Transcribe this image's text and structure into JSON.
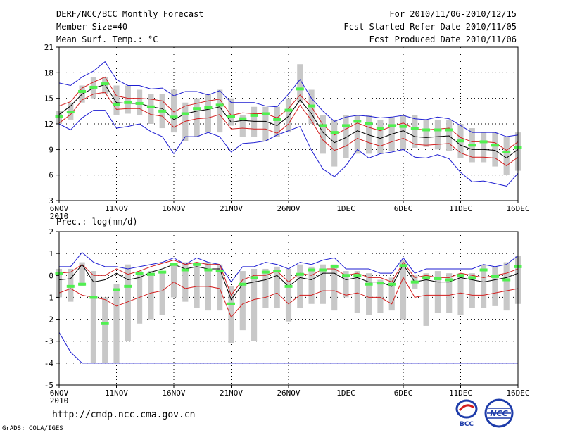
{
  "header": {
    "title": "DERF/NCC/BCC Monthly Forecast",
    "member_size": "Member Size=40",
    "variable": "Mean Surf. Temp.: °C",
    "period": "For 2010/11/06-2010/12/15",
    "refer_date": "Fcst Started Refer Date 2010/11/05",
    "produced_date": "Fcst Produced Date 2010/11/06"
  },
  "footer": {
    "url": "http://cmdp.ncc.cma.gov.cn",
    "credit": "GrADS: COLA/IGES",
    "logo_bcc": "BCC",
    "logo_ncc": "NCC"
  },
  "colors": {
    "bar": "#c8c8c8",
    "mean": "#000000",
    "spread": "#d21e1e",
    "envelope": "#1e1ed2",
    "marker": "#50f050"
  },
  "chart_data": [
    {
      "type": "box-line",
      "title": "Mean Surf. Temp.: °C",
      "xlabel": "",
      "ylabel": "",
      "ylim": [
        3,
        21
      ],
      "yticks": [
        3,
        6,
        9,
        12,
        15,
        18,
        21
      ],
      "xlim": [
        0,
        40
      ],
      "xtick_positions": [
        0,
        5,
        10,
        15,
        20,
        25,
        30,
        35,
        40
      ],
      "xtick_labels": [
        "6NOV",
        "11NOV",
        "16NOV",
        "21NOV",
        "26NOV",
        "1DEC",
        "6DEC",
        "11DEC",
        "16DEC"
      ],
      "year_label": "2010",
      "grid": true,
      "bar_low": [
        12,
        12.5,
        14.5,
        15,
        15.5,
        13,
        13.2,
        13,
        12,
        11.5,
        11,
        10,
        10.5,
        11,
        11,
        11.8,
        10.5,
        10.5,
        10,
        10.5,
        11,
        14.5,
        12,
        8.5,
        7,
        8,
        8.5,
        8.5,
        8.5,
        8.8,
        9,
        9.2,
        9.3,
        9,
        8.8,
        8,
        7.5,
        7.5,
        7,
        6,
        6.5
      ],
      "bar_high": [
        13.5,
        14.5,
        16.5,
        17.5,
        17.5,
        16.5,
        16.5,
        16,
        15.5,
        15.5,
        16,
        14.5,
        15,
        15.5,
        16,
        15,
        13,
        14,
        14,
        14,
        15,
        19,
        16,
        13,
        12.5,
        13,
        13,
        13,
        12.5,
        12.8,
        13,
        13,
        12.5,
        12.5,
        12.5,
        12,
        11.5,
        11,
        11,
        10.5,
        11
      ],
      "marker": [
        12.9,
        13.4,
        15.8,
        16.3,
        16.7,
        14.3,
        14.5,
        14.4,
        14.0,
        13.5,
        12.8,
        13.2,
        13.8,
        13.9,
        14.2,
        12.9,
        12.6,
        13.0,
        13.2,
        12.5,
        13.6,
        16.1,
        14.1,
        11.8,
        11.0,
        11.8,
        12.3,
        12.0,
        11.5,
        11.8,
        11.7,
        11.5,
        11.3,
        11.3,
        11.3,
        10.0,
        9.5,
        9.9,
        9.5,
        8.7,
        9.2
      ],
      "mean": [
        13.1,
        14.1,
        15.5,
        16.2,
        16.6,
        14.5,
        14.4,
        14.4,
        14.0,
        13.8,
        12.5,
        13.2,
        13.5,
        13.7,
        14.0,
        12.2,
        12.4,
        12.3,
        12.3,
        11.8,
        12.9,
        14.8,
        13.2,
        11.0,
        9.8,
        10.4,
        11.2,
        10.7,
        10.3,
        10.8,
        11.2,
        10.5,
        10.4,
        10.5,
        10.6,
        9.5,
        9.0,
        9.0,
        8.9,
        8.0,
        9.0
      ],
      "spread_upper": [
        14.1,
        14.6,
        16.2,
        16.9,
        17.5,
        15.3,
        15.0,
        15.0,
        14.9,
        14.7,
        13.4,
        14.1,
        14.4,
        14.7,
        14.9,
        13.0,
        13.3,
        13.2,
        13.2,
        12.7,
        13.8,
        15.4,
        14.0,
        11.9,
        10.7,
        11.4,
        12.1,
        11.6,
        11.2,
        11.7,
        12.1,
        11.4,
        11.3,
        11.4,
        11.5,
        10.4,
        9.9,
        9.9,
        9.8,
        8.9,
        9.9
      ],
      "spread_lower": [
        12.1,
        13.1,
        14.8,
        15.5,
        15.7,
        13.7,
        13.8,
        13.8,
        13.1,
        12.9,
        11.6,
        12.3,
        12.6,
        12.7,
        13.1,
        11.4,
        11.5,
        11.4,
        11.4,
        10.9,
        12.0,
        14.2,
        12.4,
        10.1,
        8.9,
        9.4,
        10.3,
        9.8,
        9.4,
        9.9,
        10.3,
        9.6,
        9.5,
        9.6,
        9.7,
        8.6,
        8.1,
        8.1,
        8.0,
        7.1,
        8.1
      ],
      "envelope_upper": [
        16.8,
        16.5,
        17.5,
        18.2,
        19.3,
        17.2,
        16.5,
        16.5,
        16.1,
        16.2,
        15.3,
        15.8,
        15.8,
        15.4,
        15.9,
        14.5,
        14.5,
        14.5,
        14.1,
        14.0,
        15.5,
        17.2,
        15.0,
        13.5,
        12.3,
        12.8,
        13.0,
        12.9,
        12.7,
        12.8,
        13.0,
        12.6,
        12.5,
        12.8,
        12.6,
        11.8,
        11.0,
        11.0,
        11.0,
        10.5,
        10.7
      ],
      "envelope_lower": [
        12.0,
        11.3,
        12.7,
        13.6,
        13.6,
        11.5,
        11.7,
        12.0,
        11.1,
        10.5,
        8.5,
        10.5,
        10.5,
        11.0,
        10.5,
        8.7,
        9.7,
        9.8,
        10.0,
        10.7,
        11.2,
        11.7,
        8.9,
        6.7,
        5.8,
        7.1,
        9.0,
        8.0,
        8.5,
        8.7,
        9.0,
        8.1,
        8.0,
        8.4,
        7.9,
        6.3,
        5.2,
        5.3,
        5.0,
        4.7,
        6.2
      ]
    },
    {
      "type": "box-line",
      "title": "Prec.: log(mm/d)",
      "xlabel": "",
      "ylabel": "",
      "ylim": [
        -5,
        2
      ],
      "yticks": [
        -5,
        -4,
        -3,
        -2,
        -1,
        0,
        1,
        2
      ],
      "xlim": [
        0,
        40
      ],
      "xtick_positions": [
        0,
        5,
        10,
        15,
        20,
        25,
        30,
        35,
        40
      ],
      "xtick_labels": [
        "6NOV",
        "11NOV",
        "16NOV",
        "21NOV",
        "26NOV",
        "1DEC",
        "6DEC",
        "11DEC",
        "16DEC"
      ],
      "year_label": "2010",
      "grid": true,
      "bar_low": [
        -1.0,
        -1.2,
        -0.5,
        -4.0,
        -4.0,
        -4.0,
        -3.0,
        -2.2,
        -2.0,
        -1.8,
        -1.0,
        -1.2,
        -1.5,
        -1.6,
        -1.6,
        -3.1,
        -2.5,
        -3.0,
        -1.5,
        -1.5,
        -2.1,
        -1.5,
        -1.3,
        -1.3,
        -1.6,
        -1.0,
        -1.7,
        -1.8,
        -1.7,
        -1.6,
        -2.0,
        -0.6,
        -2.3,
        -1.7,
        -1.7,
        -1.8,
        -1.5,
        -1.5,
        -1.4,
        -1.6,
        -1.3
      ],
      "bar_high": [
        0.3,
        0.3,
        0.6,
        0.2,
        -1.0,
        -0.4,
        0.5,
        0.2,
        0.2,
        0.2,
        0.5,
        0.6,
        0.5,
        0.6,
        0.5,
        -0.5,
        0.2,
        0.3,
        0.3,
        0.4,
        0.3,
        0.5,
        0.4,
        0.5,
        0.5,
        0.2,
        0.2,
        0.1,
        -0.2,
        -0.1,
        0.7,
        0.0,
        0.1,
        0.2,
        0.1,
        0.1,
        0.1,
        0.5,
        0.4,
        0.6,
        0.9
      ],
      "marker": [
        0.1,
        -0.5,
        -0.4,
        -1.0,
        -2.2,
        -0.65,
        -0.5,
        0.1,
        0.05,
        0.15,
        0.5,
        0.25,
        0.5,
        0.25,
        0.2,
        -1.3,
        -0.4,
        -0.1,
        0.15,
        0.2,
        -0.5,
        0.05,
        0.25,
        0.25,
        0.4,
        0.0,
        0.0,
        -0.4,
        -0.35,
        -0.4,
        0.45,
        -0.3,
        -0.1,
        -0.15,
        -0.2,
        0.0,
        -0.1,
        0.25,
        -0.05,
        -0.2,
        0.4
      ],
      "mean": [
        -0.2,
        -0.15,
        0.5,
        -0.3,
        -0.2,
        0.1,
        -0.2,
        -0.1,
        0.15,
        0.3,
        0.5,
        0.3,
        0.4,
        0.3,
        0.3,
        -1.1,
        -0.4,
        -0.3,
        -0.2,
        0.0,
        -0.5,
        -0.1,
        -0.2,
        0.1,
        0.1,
        -0.2,
        -0.1,
        -0.3,
        -0.3,
        -0.5,
        0.5,
        -0.3,
        -0.2,
        -0.3,
        -0.3,
        -0.1,
        -0.2,
        -0.3,
        -0.2,
        -0.1,
        0.1
      ],
      "spread_upper": [
        0.1,
        0.15,
        0.5,
        0.0,
        0.0,
        0.3,
        0.05,
        0.2,
        0.4,
        0.55,
        0.7,
        0.5,
        0.6,
        0.5,
        0.5,
        -0.9,
        -0.2,
        0.0,
        0.0,
        0.2,
        -0.3,
        0.1,
        0.0,
        0.3,
        0.3,
        0.0,
        0.1,
        -0.1,
        -0.1,
        -0.3,
        0.6,
        -0.1,
        0.0,
        -0.1,
        -0.1,
        0.1,
        0.0,
        -0.1,
        0.0,
        0.1,
        0.3
      ],
      "spread_lower": [
        -0.8,
        -0.6,
        -0.9,
        -1.0,
        -1.1,
        -1.4,
        -1.2,
        -1.0,
        -0.8,
        -0.7,
        -0.3,
        -0.6,
        -0.5,
        -0.5,
        -0.6,
        -1.9,
        -1.3,
        -1.1,
        -1.0,
        -0.8,
        -1.3,
        -0.9,
        -0.9,
        -0.7,
        -0.7,
        -0.9,
        -0.8,
        -1.0,
        -1.0,
        -1.3,
        -0.1,
        -1.0,
        -0.9,
        -0.9,
        -0.9,
        -0.8,
        -0.9,
        -0.9,
        -0.8,
        -0.7,
        -0.6
      ],
      "envelope_upper": [
        0.4,
        0.4,
        1.05,
        0.6,
        0.4,
        0.4,
        0.3,
        0.4,
        0.5,
        0.6,
        0.8,
        0.5,
        0.8,
        0.6,
        0.5,
        -0.3,
        0.4,
        0.4,
        0.6,
        0.5,
        0.3,
        0.6,
        0.5,
        0.7,
        0.8,
        0.3,
        0.3,
        0.3,
        0.1,
        0.1,
        0.8,
        0.1,
        0.3,
        0.3,
        0.3,
        0.3,
        0.3,
        0.5,
        0.4,
        0.5,
        0.9
      ],
      "envelope_lower": [
        -2.6,
        -3.5,
        -4.0,
        -4.0,
        -4.0,
        -4.0,
        -4.0,
        -4.0,
        -4.0,
        -4.0,
        -4.0,
        -4.0,
        -4.0,
        -4.0,
        -4.0,
        -4.0,
        -4.0,
        -4.0,
        -4.0,
        -4.0,
        -4.0,
        -4.0,
        -4.0,
        -4.0,
        -4.0,
        -4.0,
        -4.0,
        -4.0,
        -4.0,
        -4.0,
        -4.0,
        -4.0,
        -4.0,
        -4.0,
        -4.0,
        -4.0,
        -4.0,
        -4.0,
        -4.0,
        -4.0,
        -4.0
      ]
    }
  ]
}
